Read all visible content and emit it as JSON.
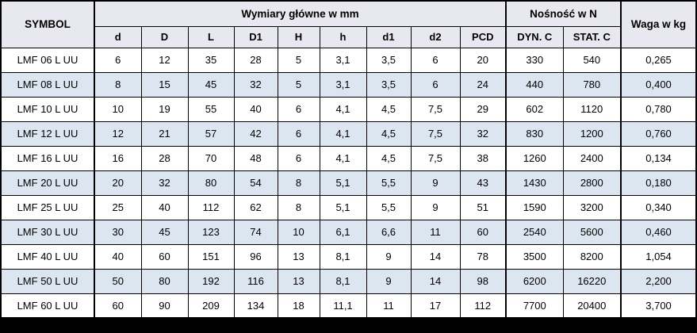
{
  "colors": {
    "header_bg": "#e8e8f0",
    "row_alt_bg": "#dce6f1",
    "border": "#000000"
  },
  "chart_data": {
    "type": "table",
    "title": "LMF L UU flange linear bearing specification table",
    "header_groups": [
      {
        "label": "SYMBOL",
        "colspan": 1
      },
      {
        "label": "Wymiary główne w mm",
        "colspan": 9
      },
      {
        "label": "Nośność w N",
        "colspan": 2
      },
      {
        "label": "Waga w kg",
        "colspan": 1
      }
    ],
    "columns": [
      "SYMBOL",
      "d",
      "D",
      "L",
      "D1",
      "H",
      "h",
      "d1",
      "d2",
      "PCD",
      "DYN. C",
      "STAT. C",
      "Waga w kg"
    ],
    "rows": [
      {
        "symbol": "LMF 06 L UU",
        "values": [
          "6",
          "12",
          "35",
          "28",
          "5",
          "3,1",
          "3,5",
          "6",
          "20",
          "330",
          "540",
          "0,265"
        ]
      },
      {
        "symbol": "LMF 08 L UU",
        "values": [
          "8",
          "15",
          "45",
          "32",
          "5",
          "3,1",
          "3,5",
          "6",
          "24",
          "440",
          "780",
          "0,400"
        ]
      },
      {
        "symbol": "LMF 10 L UU",
        "values": [
          "10",
          "19",
          "55",
          "40",
          "6",
          "4,1",
          "4,5",
          "7,5",
          "29",
          "602",
          "1120",
          "0,780"
        ]
      },
      {
        "symbol": "LMF 12 L UU",
        "values": [
          "12",
          "21",
          "57",
          "42",
          "6",
          "4,1",
          "4,5",
          "7,5",
          "32",
          "830",
          "1200",
          "0,760"
        ]
      },
      {
        "symbol": "LMF 16 L UU",
        "values": [
          "16",
          "28",
          "70",
          "48",
          "6",
          "4,1",
          "4,5",
          "7,5",
          "38",
          "1260",
          "2400",
          "0,134"
        ]
      },
      {
        "symbol": "LMF 20 L UU",
        "values": [
          "20",
          "32",
          "80",
          "54",
          "8",
          "5,1",
          "5,5",
          "9",
          "43",
          "1430",
          "2800",
          "0,180"
        ]
      },
      {
        "symbol": "LMF 25 L UU",
        "values": [
          "25",
          "40",
          "112",
          "62",
          "8",
          "5,1",
          "5,5",
          "9",
          "51",
          "1590",
          "3200",
          "0,340"
        ]
      },
      {
        "symbol": "LMF 30 L UU",
        "values": [
          "30",
          "45",
          "123",
          "74",
          "10",
          "6,1",
          "6,6",
          "11",
          "60",
          "2540",
          "5600",
          "0,460"
        ]
      },
      {
        "symbol": "LMF 40 L UU",
        "values": [
          "40",
          "60",
          "151",
          "96",
          "13",
          "8,1",
          "9",
          "14",
          "78",
          "3500",
          "8200",
          "1,054"
        ]
      },
      {
        "symbol": "LMF 50 L UU",
        "values": [
          "50",
          "80",
          "192",
          "116",
          "13",
          "8,1",
          "9",
          "14",
          "98",
          "6200",
          "16220",
          "2,200"
        ]
      },
      {
        "symbol": "LMF 60 L UU",
        "values": [
          "60",
          "90",
          "209",
          "134",
          "18",
          "11,1",
          "11",
          "17",
          "112",
          "7700",
          "20400",
          "3,700"
        ]
      }
    ]
  }
}
